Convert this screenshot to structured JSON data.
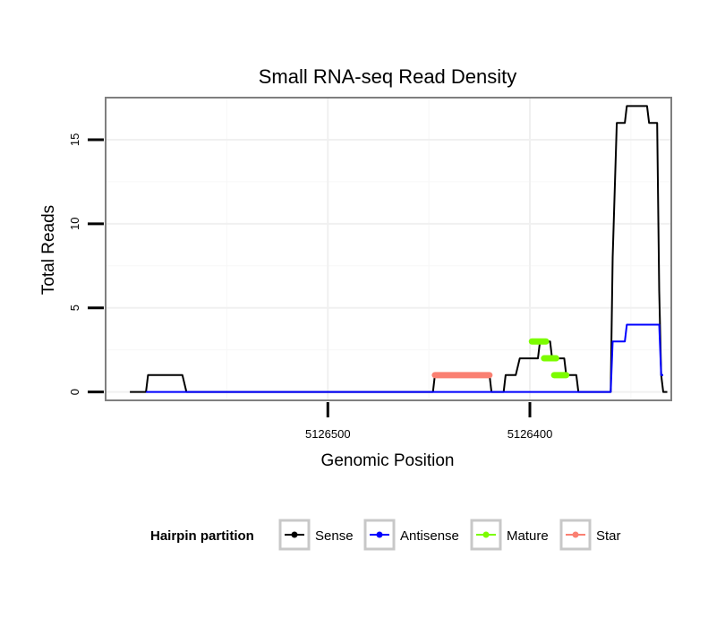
{
  "chart_data": {
    "type": "line",
    "title": "Small RNA-seq Read Density",
    "xlabel": "Genomic Position",
    "ylabel": "Total Reads",
    "x_reversed": true,
    "xlim": [
      5126610,
      5126330
    ],
    "ylim": [
      -0.5,
      17.5
    ],
    "x_ticks": [
      5126500,
      5126400
    ],
    "x_tick_labels": [
      "5126500",
      "5126400"
    ],
    "y_ticks": [
      0,
      5,
      10,
      15
    ],
    "y_tick_labels": [
      "0",
      "5",
      "10",
      "15"
    ],
    "grid": true,
    "legend": {
      "title": "Hairpin partition",
      "position": "bottom",
      "entries": [
        {
          "name": "Sense",
          "color": "#000000"
        },
        {
          "name": "Antisense",
          "color": "#0000ff"
        },
        {
          "name": "Mature",
          "color": "#7cfc00"
        },
        {
          "name": "Star",
          "color": "#fa8072"
        }
      ]
    },
    "series": [
      {
        "name": "Sense",
        "color": "#000000",
        "x": [
          5126598,
          5126590,
          5126589,
          5126572,
          5126570,
          5126448,
          5126447,
          5126446,
          5126420,
          5126419,
          5126413,
          5126412,
          5126407,
          5126405,
          5126396,
          5126395,
          5126394,
          5126390,
          5126389,
          5126388,
          5126383,
          5126382,
          5126382,
          5126377,
          5126376,
          5126365,
          5126360,
          5126359,
          5126357,
          5126356,
          5126353,
          5126352,
          5126342,
          5126341,
          5126338,
          5126337,
          5126336,
          5126335,
          5126334,
          5126332
        ],
        "y": [
          0,
          0,
          1,
          1,
          0,
          0,
          1,
          1,
          1,
          0,
          0,
          1,
          1,
          2,
          2,
          3,
          3,
          3,
          2,
          2,
          2,
          1,
          1,
          1,
          0,
          0,
          0,
          8,
          16,
          16,
          16,
          17,
          17,
          16,
          16,
          16,
          6,
          1,
          0,
          0
        ]
      },
      {
        "name": "Antisense",
        "color": "#0000ff",
        "x": [
          5126590,
          5126361,
          5126360,
          5126359,
          5126357,
          5126356,
          5126353,
          5126352,
          5126336,
          5126335,
          5126334
        ],
        "y": [
          0,
          0,
          0,
          3,
          3,
          3,
          3,
          4,
          4,
          1,
          1
        ]
      },
      {
        "name": "Mature",
        "color": "#7cfc00",
        "segments": [
          {
            "x1": 5126399,
            "x2": 5126392,
            "y": 3
          },
          {
            "x1": 5126393,
            "x2": 5126387,
            "y": 2
          },
          {
            "x1": 5126388,
            "x2": 5126382,
            "y": 1
          }
        ]
      },
      {
        "name": "Star",
        "color": "#fa8072",
        "segments": [
          {
            "x1": 5126447,
            "x2": 5126420,
            "y": 1
          }
        ]
      }
    ]
  }
}
